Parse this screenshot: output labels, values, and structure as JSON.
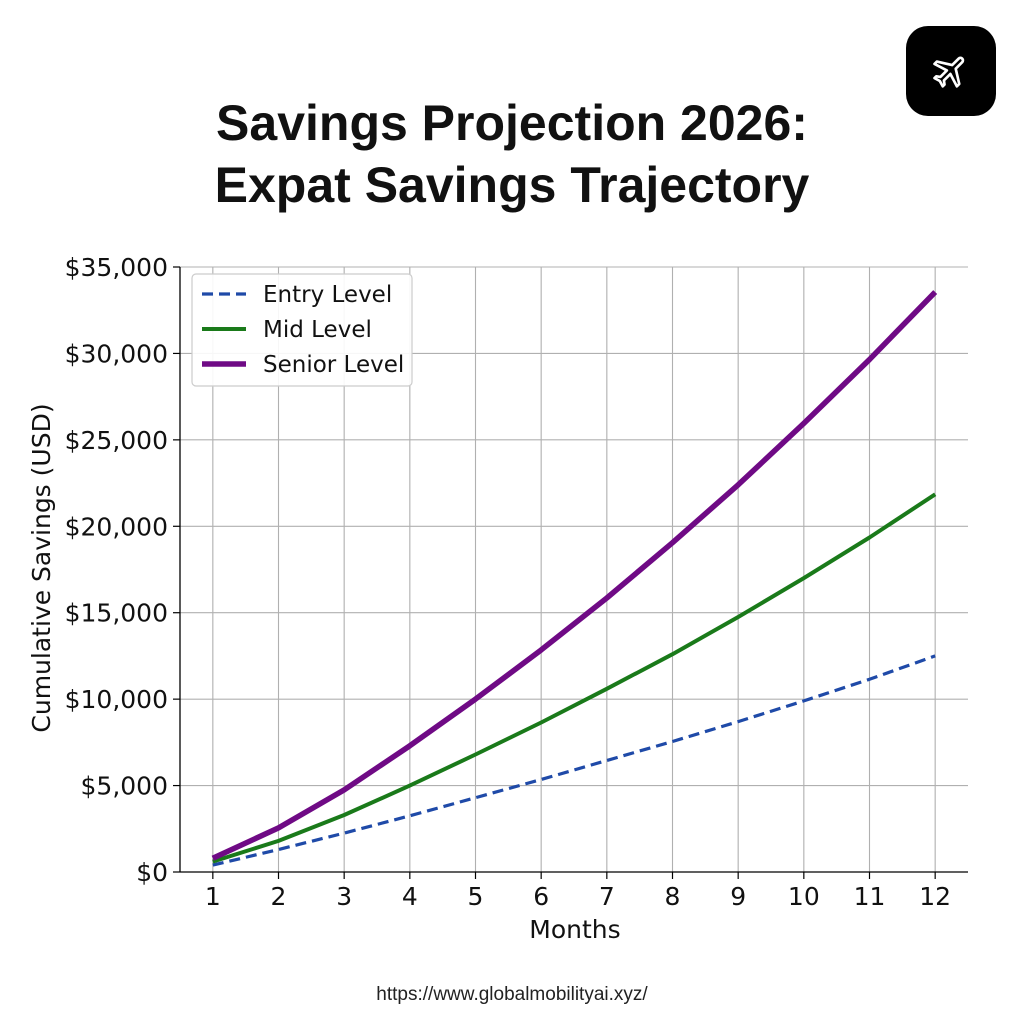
{
  "header": {
    "title_line1": "Savings Projection 2026:",
    "title_line2": "Expat Savings Trajectory",
    "logo_icon": "airplane-icon"
  },
  "footer": {
    "url": "https://www.globalmobilityai.xyz/"
  },
  "chart_data": {
    "type": "line",
    "title": "Savings Projection 2026: Expat Savings Trajectory",
    "xlabel": "Months",
    "ylabel": "Cumulative Savings (USD)",
    "x": [
      1,
      2,
      3,
      4,
      5,
      6,
      7,
      8,
      9,
      10,
      11,
      12
    ],
    "xlim": [
      0.5,
      12.5
    ],
    "ylim": [
      0,
      35000
    ],
    "yticks": [
      0,
      5000,
      10000,
      15000,
      20000,
      25000,
      30000,
      35000
    ],
    "ytick_labels": [
      "$0",
      "$5,000",
      "$10,000",
      "$15,000",
      "$20,000",
      "$25,000",
      "$30,000",
      "$35,000"
    ],
    "grid": true,
    "legend_position": "top-left",
    "series": [
      {
        "name": "Entry Level",
        "color": "#1f4aa8",
        "style": "dashed",
        "values": [
          400,
          1300,
          2250,
          3250,
          4300,
          5350,
          6450,
          7550,
          8700,
          9900,
          11150,
          12500
        ]
      },
      {
        "name": "Mid Level",
        "color": "#1a7a1a",
        "style": "solid",
        "values": [
          600,
          1800,
          3300,
          5000,
          6800,
          8650,
          10600,
          12600,
          14750,
          17000,
          19350,
          21850
        ]
      },
      {
        "name": "Senior Level",
        "color": "#6f0a85",
        "style": "solid",
        "values": [
          800,
          2550,
          4750,
          7300,
          10000,
          12850,
          15850,
          19050,
          22400,
          25950,
          29650,
          33550
        ]
      }
    ]
  }
}
